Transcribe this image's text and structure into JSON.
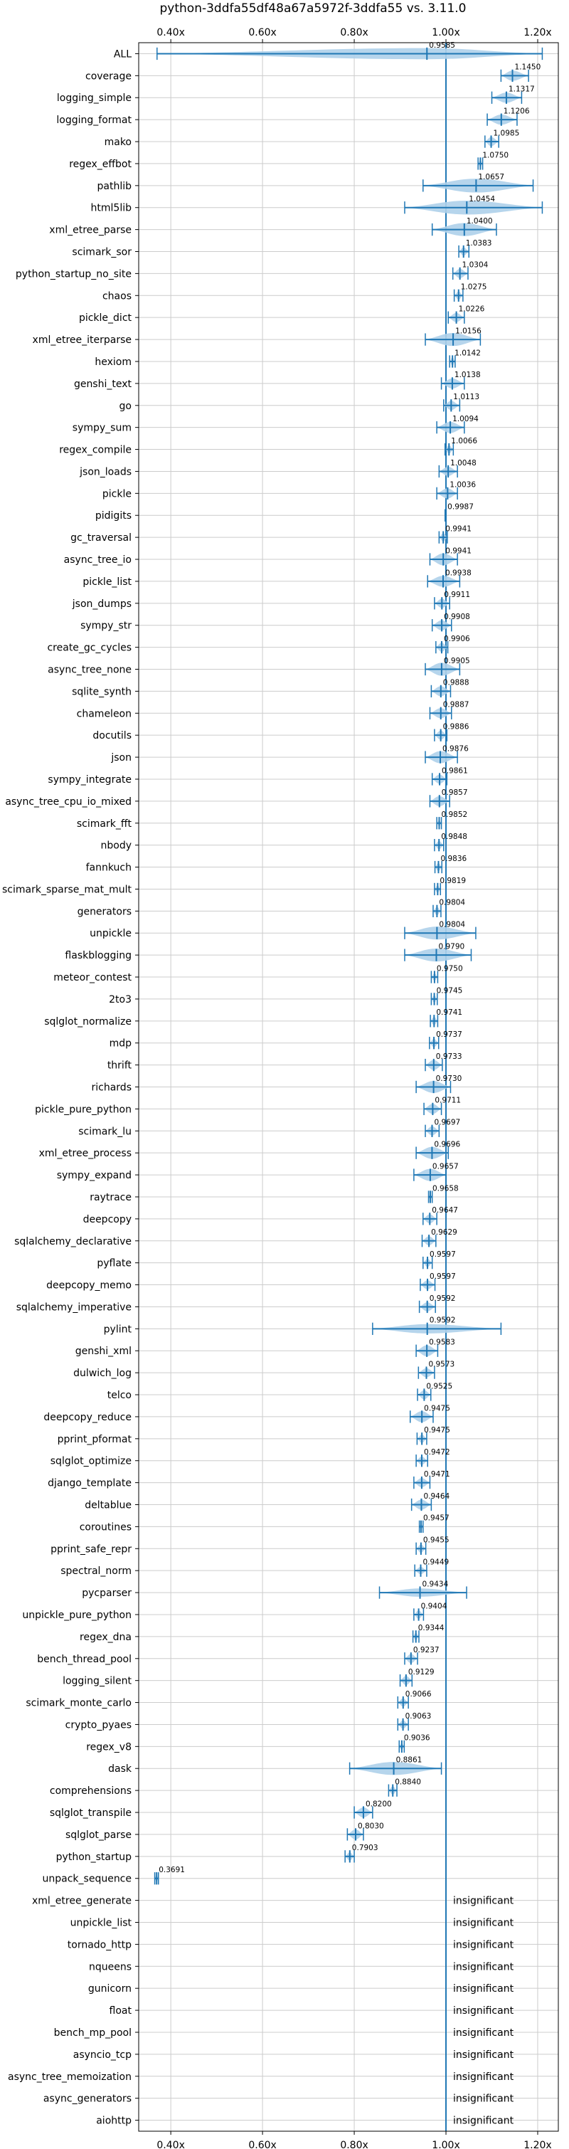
{
  "chart_data": {
    "type": "violin",
    "title": "python-3ddfa55df48a67a5972f-3ddfa55 vs. 3.11.0",
    "xlim": [
      0.33,
      1.245
    ],
    "xticks": [
      "0.40x",
      "0.60x",
      "0.80x",
      "1.00x",
      "1.20x"
    ],
    "xtick_values": [
      0.4,
      0.6,
      0.8,
      1.0,
      1.2
    ],
    "grid": true,
    "reference_line": 1.0,
    "colors": {
      "violin": "#aed0ea",
      "line": "#1f77b4",
      "grid": "#cccccc"
    },
    "insignificant_text": "insignificant",
    "benchmarks": [
      {
        "name": "ALL",
        "label": "0.9585",
        "value": 0.9585,
        "lo": 0.37,
        "hi": 1.21,
        "w": 0.6
      },
      {
        "name": "coverage",
        "label": "1.1450",
        "value": 1.145,
        "lo": 1.12,
        "hi": 1.18,
        "w": 0.55
      },
      {
        "name": "logging_simple",
        "label": "1.1317",
        "value": 1.1317,
        "lo": 1.1,
        "hi": 1.165,
        "w": 0.55
      },
      {
        "name": "logging_format",
        "label": "1.1206",
        "value": 1.1206,
        "lo": 1.09,
        "hi": 1.155,
        "w": 0.55
      },
      {
        "name": "mako",
        "label": "1.0985",
        "value": 1.0985,
        "lo": 1.085,
        "hi": 1.115,
        "w": 0.5
      },
      {
        "name": "regex_effbot",
        "label": "1.0750",
        "value": 1.075,
        "lo": 1.07,
        "hi": 1.08,
        "w": 0.4
      },
      {
        "name": "pathlib",
        "label": "1.0657",
        "value": 1.0657,
        "lo": 0.95,
        "hi": 1.19,
        "w": 0.75
      },
      {
        "name": "html5lib",
        "label": "1.0454",
        "value": 1.0454,
        "lo": 0.91,
        "hi": 1.21,
        "w": 0.75
      },
      {
        "name": "xml_etree_parse",
        "label": "1.0400",
        "value": 1.04,
        "lo": 0.97,
        "hi": 1.11,
        "w": 0.7
      },
      {
        "name": "scimark_sor",
        "label": "1.0383",
        "value": 1.0383,
        "lo": 1.028,
        "hi": 1.05,
        "w": 0.45
      },
      {
        "name": "python_startup_no_site",
        "label": "1.0304",
        "value": 1.0304,
        "lo": 1.015,
        "hi": 1.048,
        "w": 0.5
      },
      {
        "name": "chaos",
        "label": "1.0275",
        "value": 1.0275,
        "lo": 1.018,
        "hi": 1.037,
        "w": 0.45
      },
      {
        "name": "pickle_dict",
        "label": "1.0226",
        "value": 1.0226,
        "lo": 1.005,
        "hi": 1.04,
        "w": 0.5
      },
      {
        "name": "xml_etree_iterparse",
        "label": "1.0156",
        "value": 1.0156,
        "lo": 0.955,
        "hi": 1.075,
        "w": 0.7
      },
      {
        "name": "hexiom",
        "label": "1.0142",
        "value": 1.0142,
        "lo": 1.008,
        "hi": 1.02,
        "w": 0.45
      },
      {
        "name": "genshi_text",
        "label": "1.0138",
        "value": 1.0138,
        "lo": 0.99,
        "hi": 1.04,
        "w": 0.55
      },
      {
        "name": "go",
        "label": "1.0113",
        "value": 1.0113,
        "lo": 0.995,
        "hi": 1.03,
        "w": 0.5
      },
      {
        "name": "sympy_sum",
        "label": "1.0094",
        "value": 1.0094,
        "lo": 0.98,
        "hi": 1.04,
        "w": 0.6
      },
      {
        "name": "regex_compile",
        "label": "1.0066",
        "value": 1.0066,
        "lo": 0.998,
        "hi": 1.016,
        "w": 0.45
      },
      {
        "name": "json_loads",
        "label": "1.0048",
        "value": 1.0048,
        "lo": 0.985,
        "hi": 1.025,
        "w": 0.5
      },
      {
        "name": "pickle",
        "label": "1.0036",
        "value": 1.0036,
        "lo": 0.98,
        "hi": 1.025,
        "w": 0.55
      },
      {
        "name": "pidigits",
        "label": "0.9987",
        "value": 0.9987,
        "lo": 0.998,
        "hi": 0.9995,
        "w": 0.0
      },
      {
        "name": "gc_traversal",
        "label": "0.9941",
        "value": 0.9941,
        "lo": 0.985,
        "hi": 1.003,
        "w": 0.45
      },
      {
        "name": "async_tree_io",
        "label": "0.9941",
        "value": 0.9941,
        "lo": 0.965,
        "hi": 1.025,
        "w": 0.65
      },
      {
        "name": "pickle_list",
        "label": "0.9938",
        "value": 0.9938,
        "lo": 0.96,
        "hi": 1.03,
        "w": 0.6
      },
      {
        "name": "json_dumps",
        "label": "0.9911",
        "value": 0.9911,
        "lo": 0.975,
        "hi": 1.008,
        "w": 0.5
      },
      {
        "name": "sympy_str",
        "label": "0.9908",
        "value": 0.9908,
        "lo": 0.97,
        "hi": 1.012,
        "w": 0.55
      },
      {
        "name": "create_gc_cycles",
        "label": "0.9906",
        "value": 0.9906,
        "lo": 0.978,
        "hi": 1.004,
        "w": 0.5
      },
      {
        "name": "async_tree_none",
        "label": "0.9905",
        "value": 0.9905,
        "lo": 0.955,
        "hi": 1.03,
        "w": 0.7
      },
      {
        "name": "sqlite_synth",
        "label": "0.9888",
        "value": 0.9888,
        "lo": 0.968,
        "hi": 1.01,
        "w": 0.55
      },
      {
        "name": "chameleon",
        "label": "0.9887",
        "value": 0.9887,
        "lo": 0.965,
        "hi": 1.012,
        "w": 0.55
      },
      {
        "name": "docutils",
        "label": "0.9886",
        "value": 0.9886,
        "lo": 0.975,
        "hi": 1.002,
        "w": 0.5
      },
      {
        "name": "json",
        "label": "0.9876",
        "value": 0.9876,
        "lo": 0.955,
        "hi": 1.025,
        "w": 0.65
      },
      {
        "name": "sympy_integrate",
        "label": "0.9861",
        "value": 0.9861,
        "lo": 0.97,
        "hi": 1.002,
        "w": 0.5
      },
      {
        "name": "async_tree_cpu_io_mixed",
        "label": "0.9857",
        "value": 0.9857,
        "lo": 0.965,
        "hi": 1.008,
        "w": 0.55
      },
      {
        "name": "scimark_fft",
        "label": "0.9852",
        "value": 0.9852,
        "lo": 0.98,
        "hi": 0.99,
        "w": 0.35
      },
      {
        "name": "nbody",
        "label": "0.9848",
        "value": 0.9848,
        "lo": 0.975,
        "hi": 0.995,
        "w": 0.45
      },
      {
        "name": "fannkuch",
        "label": "0.9836",
        "value": 0.9836,
        "lo": 0.976,
        "hi": 0.991,
        "w": 0.45
      },
      {
        "name": "scimark_sparse_mat_mult",
        "label": "0.9819",
        "value": 0.9819,
        "lo": 0.975,
        "hi": 0.988,
        "w": 0.4
      },
      {
        "name": "generators",
        "label": "0.9804",
        "value": 0.9804,
        "lo": 0.972,
        "hi": 0.989,
        "w": 0.45
      },
      {
        "name": "unpickle",
        "label": "0.9804",
        "value": 0.9804,
        "lo": 0.91,
        "hi": 1.065,
        "w": 0.7
      },
      {
        "name": "flaskblogging",
        "label": "0.9790",
        "value": 0.979,
        "lo": 0.91,
        "hi": 1.055,
        "w": 0.7
      },
      {
        "name": "meteor_contest",
        "label": "0.9750",
        "value": 0.975,
        "lo": 0.968,
        "hi": 0.982,
        "w": 0.4
      },
      {
        "name": "2to3",
        "label": "0.9745",
        "value": 0.9745,
        "lo": 0.968,
        "hi": 0.981,
        "w": 0.4
      },
      {
        "name": "sqlglot_normalize",
        "label": "0.9741",
        "value": 0.9741,
        "lo": 0.966,
        "hi": 0.982,
        "w": 0.45
      },
      {
        "name": "mdp",
        "label": "0.9737",
        "value": 0.9737,
        "lo": 0.964,
        "hi": 0.984,
        "w": 0.45
      },
      {
        "name": "thrift",
        "label": "0.9733",
        "value": 0.9733,
        "lo": 0.955,
        "hi": 0.992,
        "w": 0.55
      },
      {
        "name": "richards",
        "label": "0.9730",
        "value": 0.973,
        "lo": 0.935,
        "hi": 1.01,
        "w": 0.65
      },
      {
        "name": "pickle_pure_python",
        "label": "0.9711",
        "value": 0.9711,
        "lo": 0.952,
        "hi": 0.99,
        "w": 0.55
      },
      {
        "name": "scimark_lu",
        "label": "0.9697",
        "value": 0.9697,
        "lo": 0.955,
        "hi": 0.985,
        "w": 0.5
      },
      {
        "name": "xml_etree_process",
        "label": "0.9696",
        "value": 0.9696,
        "lo": 0.935,
        "hi": 1.005,
        "w": 0.65
      },
      {
        "name": "sympy_expand",
        "label": "0.9657",
        "value": 0.9657,
        "lo": 0.93,
        "hi": 1.0,
        "w": 0.65
      },
      {
        "name": "raytrace",
        "label": "0.9658",
        "value": 0.9658,
        "lo": 0.962,
        "hi": 0.97,
        "w": 0.35
      },
      {
        "name": "deepcopy",
        "label": "0.9647",
        "value": 0.9647,
        "lo": 0.95,
        "hi": 0.98,
        "w": 0.5
      },
      {
        "name": "sqlalchemy_declarative",
        "label": "0.9629",
        "value": 0.9629,
        "lo": 0.948,
        "hi": 0.978,
        "w": 0.5
      },
      {
        "name": "pyflate",
        "label": "0.9597",
        "value": 0.9597,
        "lo": 0.95,
        "hi": 0.97,
        "w": 0.45
      },
      {
        "name": "deepcopy_memo",
        "label": "0.9597",
        "value": 0.9597,
        "lo": 0.944,
        "hi": 0.976,
        "w": 0.5
      },
      {
        "name": "sqlalchemy_imperative",
        "label": "0.9592",
        "value": 0.9592,
        "lo": 0.942,
        "hi": 0.977,
        "w": 0.5
      },
      {
        "name": "pylint",
        "label": "0.9592",
        "value": 0.9592,
        "lo": 0.84,
        "hi": 1.12,
        "w": 0.5
      },
      {
        "name": "genshi_xml",
        "label": "0.9583",
        "value": 0.9583,
        "lo": 0.935,
        "hi": 0.982,
        "w": 0.6
      },
      {
        "name": "dulwich_log",
        "label": "0.9573",
        "value": 0.9573,
        "lo": 0.94,
        "hi": 0.975,
        "w": 0.5
      },
      {
        "name": "telco",
        "label": "0.9525",
        "value": 0.9525,
        "lo": 0.938,
        "hi": 0.967,
        "w": 0.5
      },
      {
        "name": "deepcopy_reduce",
        "label": "0.9475",
        "value": 0.9475,
        "lo": 0.922,
        "hi": 0.972,
        "w": 0.6
      },
      {
        "name": "pprint_pformat",
        "label": "0.9475",
        "value": 0.9475,
        "lo": 0.937,
        "hi": 0.958,
        "w": 0.45
      },
      {
        "name": "sqlglot_optimize",
        "label": "0.9472",
        "value": 0.9472,
        "lo": 0.935,
        "hi": 0.96,
        "w": 0.45
      },
      {
        "name": "django_template",
        "label": "0.9471",
        "value": 0.9471,
        "lo": 0.93,
        "hi": 0.965,
        "w": 0.5
      },
      {
        "name": "deltablue",
        "label": "0.9464",
        "value": 0.9464,
        "lo": 0.925,
        "hi": 0.968,
        "w": 0.55
      },
      {
        "name": "coroutines",
        "label": "0.9457",
        "value": 0.9457,
        "lo": 0.942,
        "hi": 0.95,
        "w": 0.35
      },
      {
        "name": "pprint_safe_repr",
        "label": "0.9455",
        "value": 0.9455,
        "lo": 0.935,
        "hi": 0.956,
        "w": 0.45
      },
      {
        "name": "spectral_norm",
        "label": "0.9449",
        "value": 0.9449,
        "lo": 0.932,
        "hi": 0.958,
        "w": 0.4
      },
      {
        "name": "pycparser",
        "label": "0.9434",
        "value": 0.9434,
        "lo": 0.855,
        "hi": 1.045,
        "w": 0.45
      },
      {
        "name": "unpickle_pure_python",
        "label": "0.9404",
        "value": 0.9404,
        "lo": 0.93,
        "hi": 0.951,
        "w": 0.45
      },
      {
        "name": "regex_dna",
        "label": "0.9344",
        "value": 0.9344,
        "lo": 0.928,
        "hi": 0.941,
        "w": 0.4
      },
      {
        "name": "bench_thread_pool",
        "label": "0.9237",
        "value": 0.9237,
        "lo": 0.91,
        "hi": 0.938,
        "w": 0.5
      },
      {
        "name": "logging_silent",
        "label": "0.9129",
        "value": 0.9129,
        "lo": 0.9,
        "hi": 0.926,
        "w": 0.5
      },
      {
        "name": "scimark_monte_carlo",
        "label": "0.9066",
        "value": 0.9066,
        "lo": 0.895,
        "hi": 0.918,
        "w": 0.45
      },
      {
        "name": "crypto_pyaes",
        "label": "0.9063",
        "value": 0.9063,
        "lo": 0.895,
        "hi": 0.918,
        "w": 0.45
      },
      {
        "name": "regex_v8",
        "label": "0.9036",
        "value": 0.9036,
        "lo": 0.898,
        "hi": 0.909,
        "w": 0.35
      },
      {
        "name": "dask",
        "label": "0.8861",
        "value": 0.8861,
        "lo": 0.79,
        "hi": 0.99,
        "w": 0.7
      },
      {
        "name": "comprehensions",
        "label": "0.8840",
        "value": 0.884,
        "lo": 0.875,
        "hi": 0.893,
        "w": 0.45
      },
      {
        "name": "sqlglot_transpile",
        "label": "0.8200",
        "value": 0.82,
        "lo": 0.8,
        "hi": 0.84,
        "w": 0.55
      },
      {
        "name": "sqlglot_parse",
        "label": "0.8030",
        "value": 0.803,
        "lo": 0.785,
        "hi": 0.82,
        "w": 0.55
      },
      {
        "name": "python_startup",
        "label": "0.7903",
        "value": 0.7903,
        "lo": 0.78,
        "hi": 0.8,
        "w": 0.45
      },
      {
        "name": "unpack_sequence",
        "label": "0.3691",
        "value": 0.3691,
        "lo": 0.365,
        "hi": 0.373,
        "w": 0.4
      },
      {
        "name": "xml_etree_generate",
        "insignificant": true
      },
      {
        "name": "unpickle_list",
        "insignificant": true
      },
      {
        "name": "tornado_http",
        "insignificant": true
      },
      {
        "name": "nqueens",
        "insignificant": true
      },
      {
        "name": "gunicorn",
        "insignificant": true
      },
      {
        "name": "float",
        "insignificant": true
      },
      {
        "name": "bench_mp_pool",
        "insignificant": true
      },
      {
        "name": "asyncio_tcp",
        "insignificant": true
      },
      {
        "name": "async_tree_memoization",
        "insignificant": true
      },
      {
        "name": "async_generators",
        "insignificant": true
      },
      {
        "name": "aiohttp",
        "insignificant": true
      }
    ]
  }
}
